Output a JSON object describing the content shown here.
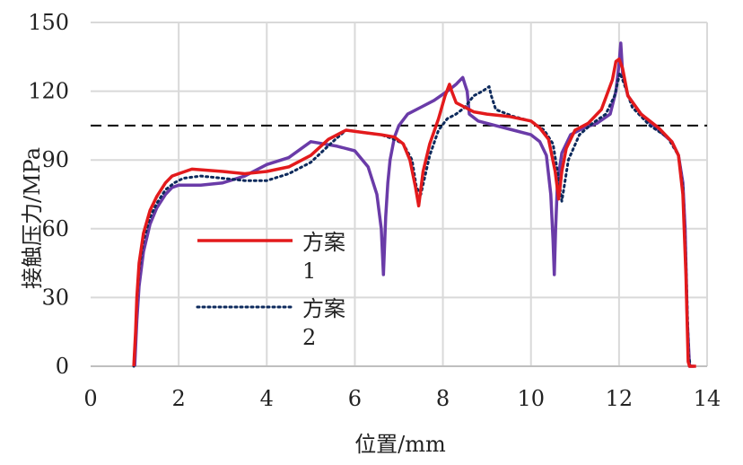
{
  "chart_data": {
    "type": "line",
    "title": "",
    "xlabel": "位置/mm",
    "ylabel": "接触压力/MPa",
    "xlim": [
      0,
      14
    ],
    "ylim": [
      0,
      150
    ],
    "xticks": [
      "0",
      "2",
      "4",
      "6",
      "8",
      "10",
      "12",
      "14"
    ],
    "yticks": [
      "0",
      "30",
      "60",
      "90",
      "120",
      "150"
    ],
    "grid": true,
    "reference_line": {
      "y": 105,
      "style": "dashed",
      "color": "#000000"
    },
    "legend_position": "center-left",
    "series": [
      {
        "name": "方案1",
        "legend_lines": [
          "方案",
          "1"
        ],
        "color": "#e31a1c",
        "style": "solid",
        "x": [
          0.98,
          1.02,
          1.05,
          1.1,
          1.2,
          1.35,
          1.5,
          1.7,
          1.85,
          2.0,
          2.3,
          3.0,
          3.5,
          4.0,
          4.5,
          5.0,
          5.4,
          5.8,
          6.2,
          6.6,
          6.9,
          7.1,
          7.25,
          7.38,
          7.45,
          7.55,
          7.7,
          7.9,
          8.05,
          8.15,
          8.2,
          8.3,
          8.5,
          8.7,
          9.0,
          9.5,
          10.0,
          10.2,
          10.4,
          10.55,
          10.63,
          10.7,
          10.8,
          11.0,
          11.3,
          11.6,
          11.85,
          11.93,
          12.0,
          12.08,
          12.2,
          12.5,
          12.9,
          13.2,
          13.35,
          13.45,
          13.52,
          13.57,
          13.6,
          13.75
        ],
        "y": [
          0,
          15,
          30,
          45,
          58,
          68,
          74,
          80,
          83,
          84,
          86,
          85,
          84,
          85,
          87,
          92,
          99,
          103,
          102,
          101,
          100,
          97,
          90,
          78,
          70,
          85,
          97,
          108,
          118,
          123,
          120,
          115,
          113,
          111,
          110,
          109,
          107,
          104,
          99,
          85,
          73,
          85,
          95,
          103,
          106,
          112,
          125,
          133,
          134,
          130,
          118,
          110,
          104,
          98,
          92,
          75,
          40,
          2,
          0,
          0
        ]
      },
      {
        "name": "方案2",
        "legend_lines": [
          "方案",
          "2"
        ],
        "color": "#0d2a5c",
        "style": "dotted",
        "x": [
          0.98,
          1.02,
          1.05,
          1.1,
          1.2,
          1.35,
          1.5,
          1.7,
          1.9,
          2.1,
          2.5,
          3.0,
          3.5,
          4.0,
          4.5,
          5.0,
          5.5,
          5.8,
          6.2,
          6.6,
          6.9,
          7.1,
          7.3,
          7.4,
          7.5,
          7.7,
          7.9,
          8.1,
          8.3,
          8.5,
          8.7,
          8.9,
          9.05,
          9.1,
          9.2,
          9.6,
          10.0,
          10.3,
          10.5,
          10.62,
          10.7,
          10.85,
          11.1,
          11.4,
          11.7,
          11.9,
          12.02,
          12.1,
          12.3,
          12.7,
          13.1,
          13.35,
          13.45,
          13.52,
          13.58,
          13.62,
          13.7
        ],
        "y": [
          0,
          14,
          28,
          42,
          55,
          65,
          71,
          77,
          80,
          82,
          83,
          82,
          81,
          81,
          84,
          89,
          98,
          103,
          102,
          101,
          99,
          97,
          90,
          78,
          75,
          92,
          103,
          108,
          110,
          113,
          118,
          120,
          122,
          118,
          112,
          109,
          107,
          103,
          97,
          83,
          72,
          90,
          101,
          106,
          110,
          118,
          128,
          124,
          113,
          105,
          100,
          92,
          78,
          45,
          5,
          0,
          0
        ]
      },
      {
        "name": "",
        "legend_lines": [],
        "color": "#6a3ba8",
        "style": "solid",
        "x": [
          1.0,
          1.05,
          1.1,
          1.2,
          1.35,
          1.5,
          1.7,
          1.85,
          2.0,
          2.5,
          3.0,
          3.5,
          4.0,
          4.5,
          5.0,
          5.3,
          5.6,
          6.0,
          6.3,
          6.5,
          6.6,
          6.65,
          6.7,
          6.75,
          6.8,
          6.9,
          7.0,
          7.2,
          7.5,
          7.8,
          8.1,
          8.3,
          8.4,
          8.45,
          8.5,
          8.55,
          8.6,
          8.8,
          9.2,
          9.6,
          10.0,
          10.2,
          10.35,
          10.45,
          10.5,
          10.53,
          10.56,
          10.6,
          10.7,
          10.9,
          11.2,
          11.5,
          11.8,
          11.93,
          12.0,
          12.04,
          12.08,
          12.2,
          12.5,
          12.9,
          13.2,
          13.35,
          13.45,
          13.5,
          13.55,
          13.6,
          13.7
        ],
        "y": [
          0,
          20,
          35,
          50,
          62,
          69,
          75,
          78,
          79,
          79,
          80,
          83,
          88,
          91,
          98,
          97,
          96,
          94,
          87,
          75,
          60,
          40,
          65,
          80,
          90,
          100,
          105,
          110,
          113,
          116,
          120,
          123,
          125,
          126,
          123,
          120,
          110,
          107,
          105,
          103,
          101,
          98,
          92,
          75,
          55,
          40,
          60,
          80,
          93,
          101,
          104,
          106,
          110,
          120,
          132,
          141,
          128,
          118,
          110,
          103,
          98,
          92,
          80,
          60,
          20,
          0,
          0
        ]
      }
    ]
  }
}
